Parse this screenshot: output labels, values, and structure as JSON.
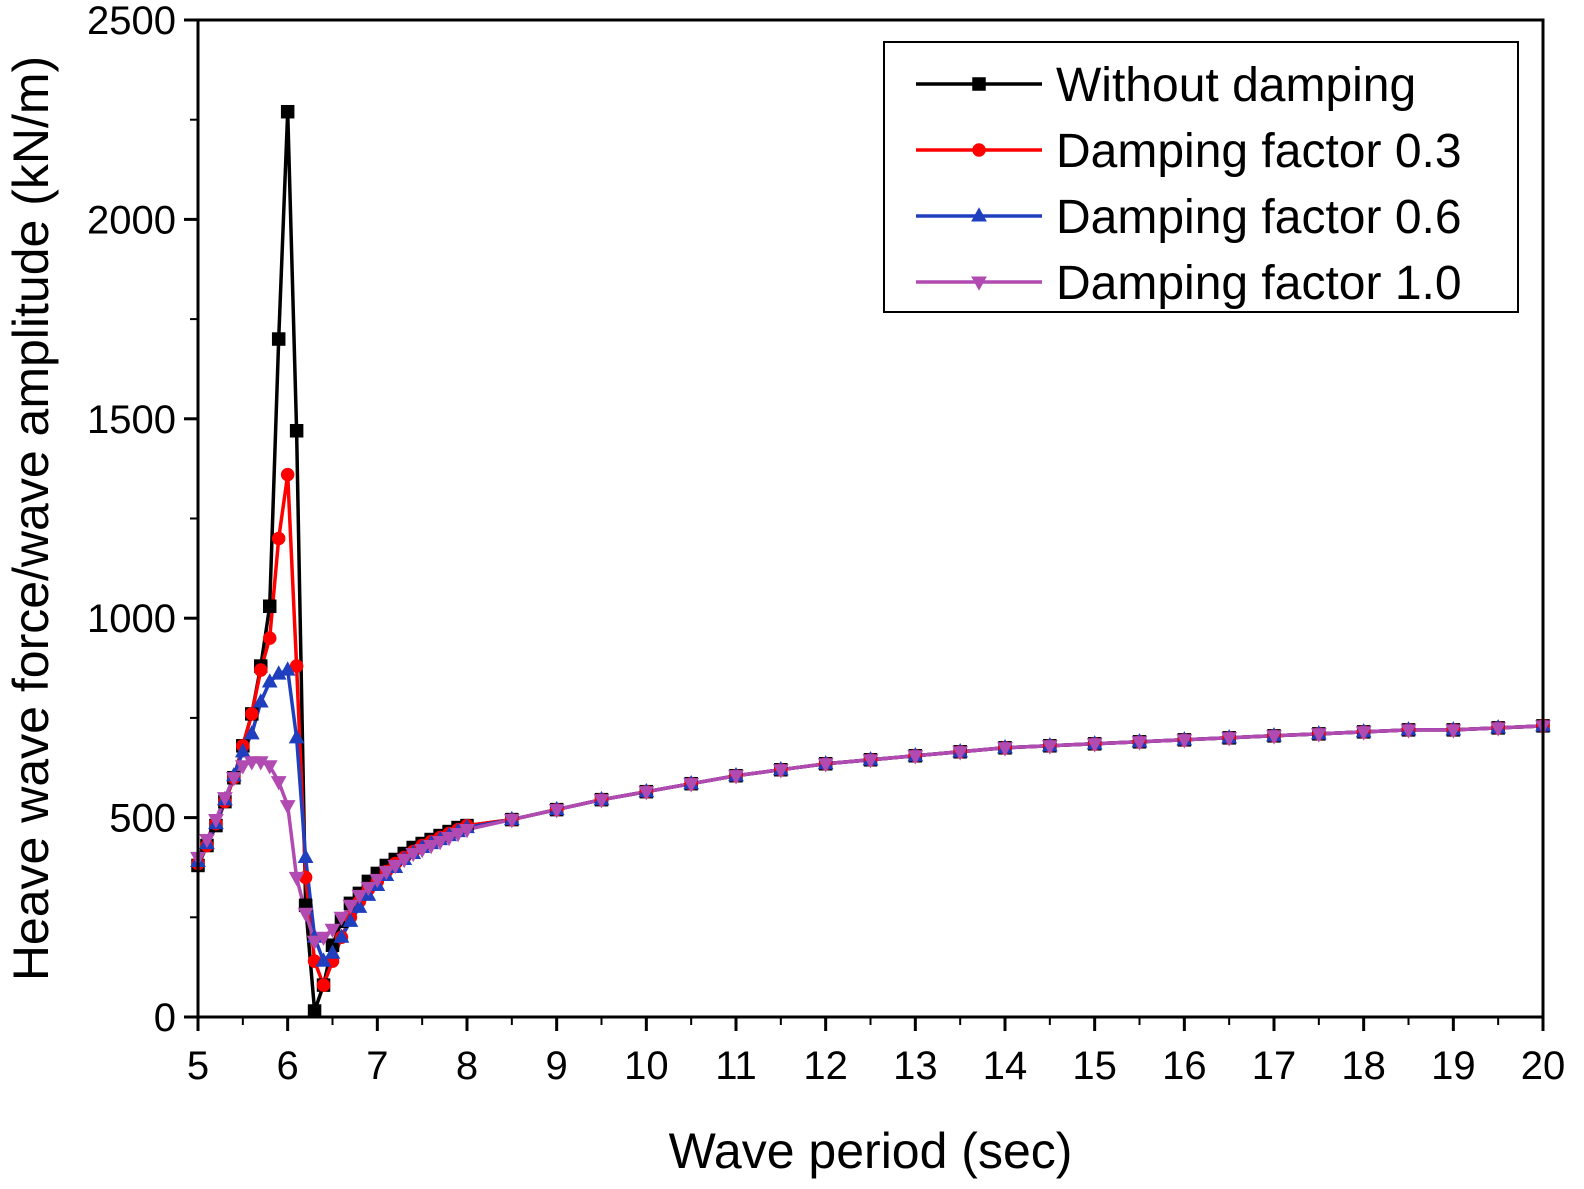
{
  "chart_data": {
    "type": "line",
    "title": "",
    "xlabel": "Wave period (sec)",
    "ylabel": "Heave wave force/wave amplitude (kN/m)",
    "xlim": [
      5,
      20
    ],
    "ylim": [
      0,
      2500
    ],
    "xticks": [
      "5",
      "6",
      "7",
      "8",
      "9",
      "10",
      "11",
      "12",
      "13",
      "14",
      "15",
      "16",
      "17",
      "18",
      "19",
      "20"
    ],
    "yticks": [
      "0",
      "500",
      "1000",
      "1500",
      "2000",
      "2500"
    ],
    "grid": false,
    "legend_position": "top-right",
    "series": [
      {
        "name": "Without damping",
        "color": "#000000",
        "marker": "square",
        "x": [
          5.0,
          5.1,
          5.2,
          5.3,
          5.4,
          5.5,
          5.6,
          5.7,
          5.8,
          5.9,
          6.0,
          6.1,
          6.2,
          6.3,
          6.4,
          6.5,
          6.6,
          6.7,
          6.8,
          6.9,
          7.0,
          7.1,
          7.2,
          7.3,
          7.4,
          7.5,
          7.6,
          7.7,
          7.8,
          7.9,
          8.0,
          8.5,
          9.0,
          9.5,
          10.0,
          10.5,
          11.0,
          11.5,
          12.0,
          12.5,
          13.0,
          13.5,
          14.0,
          14.5,
          15.0,
          15.5,
          16.0,
          16.5,
          17.0,
          17.5,
          18.0,
          18.5,
          19.0,
          19.5,
          20.0
        ],
        "y": [
          380,
          430,
          480,
          540,
          600,
          680,
          760,
          880,
          1030,
          1700,
          2270,
          1470,
          280,
          15,
          80,
          180,
          240,
          285,
          310,
          340,
          360,
          380,
          395,
          410,
          425,
          435,
          445,
          455,
          465,
          475,
          480,
          495,
          520,
          545,
          565,
          585,
          605,
          620,
          635,
          645,
          655,
          665,
          675,
          680,
          685,
          690,
          695,
          700,
          705,
          710,
          715,
          720,
          720,
          725,
          730
        ]
      },
      {
        "name": "Damping factor 0.3",
        "color": "#ff0000",
        "marker": "circle",
        "x": [
          5.0,
          5.1,
          5.2,
          5.3,
          5.4,
          5.5,
          5.6,
          5.7,
          5.8,
          5.9,
          6.0,
          6.1,
          6.2,
          6.3,
          6.4,
          6.5,
          6.6,
          6.7,
          6.8,
          6.9,
          7.0,
          7.1,
          7.2,
          7.3,
          7.4,
          7.5,
          7.6,
          7.7,
          7.8,
          7.9,
          8.0,
          8.5,
          9.0,
          9.5,
          10.0,
          10.5,
          11.0,
          11.5,
          12.0,
          12.5,
          13.0,
          13.5,
          14.0,
          14.5,
          15.0,
          15.5,
          16.0,
          16.5,
          17.0,
          17.5,
          18.0,
          18.5,
          19.0,
          19.5,
          20.0
        ],
        "y": [
          385,
          430,
          485,
          540,
          600,
          680,
          760,
          870,
          950,
          1200,
          1360,
          880,
          350,
          140,
          80,
          140,
          200,
          250,
          290,
          320,
          340,
          365,
          385,
          400,
          415,
          430,
          440,
          450,
          460,
          470,
          480,
          495,
          520,
          545,
          565,
          585,
          605,
          620,
          635,
          645,
          655,
          665,
          675,
          680,
          685,
          690,
          695,
          700,
          705,
          710,
          715,
          720,
          720,
          725,
          730
        ]
      },
      {
        "name": "Damping factor 0.6",
        "color": "#1f3fbf",
        "marker": "triangle-up",
        "x": [
          5.0,
          5.1,
          5.2,
          5.3,
          5.4,
          5.5,
          5.6,
          5.7,
          5.8,
          5.9,
          6.0,
          6.1,
          6.2,
          6.3,
          6.4,
          6.5,
          6.6,
          6.7,
          6.8,
          6.9,
          7.0,
          7.1,
          7.2,
          7.3,
          7.4,
          7.5,
          7.6,
          7.7,
          7.8,
          7.9,
          8.0,
          8.5,
          9.0,
          9.5,
          10.0,
          10.5,
          11.0,
          11.5,
          12.0,
          12.5,
          13.0,
          13.5,
          14.0,
          14.5,
          15.0,
          15.5,
          16.0,
          16.5,
          17.0,
          17.5,
          18.0,
          18.5,
          19.0,
          19.5,
          20.0
        ],
        "y": [
          390,
          435,
          485,
          545,
          605,
          665,
          710,
          790,
          840,
          860,
          870,
          700,
          400,
          200,
          140,
          160,
          200,
          240,
          275,
          305,
          330,
          355,
          375,
          395,
          410,
          425,
          435,
          445,
          455,
          465,
          475,
          495,
          520,
          545,
          565,
          585,
          605,
          620,
          635,
          645,
          655,
          665,
          675,
          680,
          685,
          690,
          695,
          700,
          705,
          710,
          715,
          720,
          720,
          725,
          730
        ]
      },
      {
        "name": "Damping factor 1.0",
        "color": "#b14ab1",
        "marker": "triangle-down",
        "x": [
          5.0,
          5.1,
          5.2,
          5.3,
          5.4,
          5.5,
          5.6,
          5.7,
          5.8,
          5.9,
          6.0,
          6.1,
          6.2,
          6.3,
          6.4,
          6.5,
          6.6,
          6.7,
          6.8,
          6.9,
          7.0,
          7.1,
          7.2,
          7.3,
          7.4,
          7.5,
          7.6,
          7.7,
          7.8,
          7.9,
          8.0,
          8.5,
          9.0,
          9.5,
          10.0,
          10.5,
          11.0,
          11.5,
          12.0,
          12.5,
          13.0,
          13.5,
          14.0,
          14.5,
          15.0,
          15.5,
          16.0,
          16.5,
          17.0,
          17.5,
          18.0,
          18.5,
          19.0,
          19.5,
          20.0
        ],
        "y": [
          400,
          445,
          495,
          550,
          600,
          630,
          640,
          640,
          630,
          590,
          530,
          350,
          260,
          190,
          200,
          220,
          250,
          280,
          305,
          325,
          345,
          365,
          380,
          395,
          410,
          420,
          430,
          440,
          450,
          460,
          470,
          495,
          520,
          545,
          565,
          585,
          605,
          620,
          635,
          645,
          655,
          665,
          675,
          680,
          685,
          690,
          695,
          700,
          705,
          710,
          715,
          720,
          720,
          725,
          730
        ]
      }
    ]
  }
}
